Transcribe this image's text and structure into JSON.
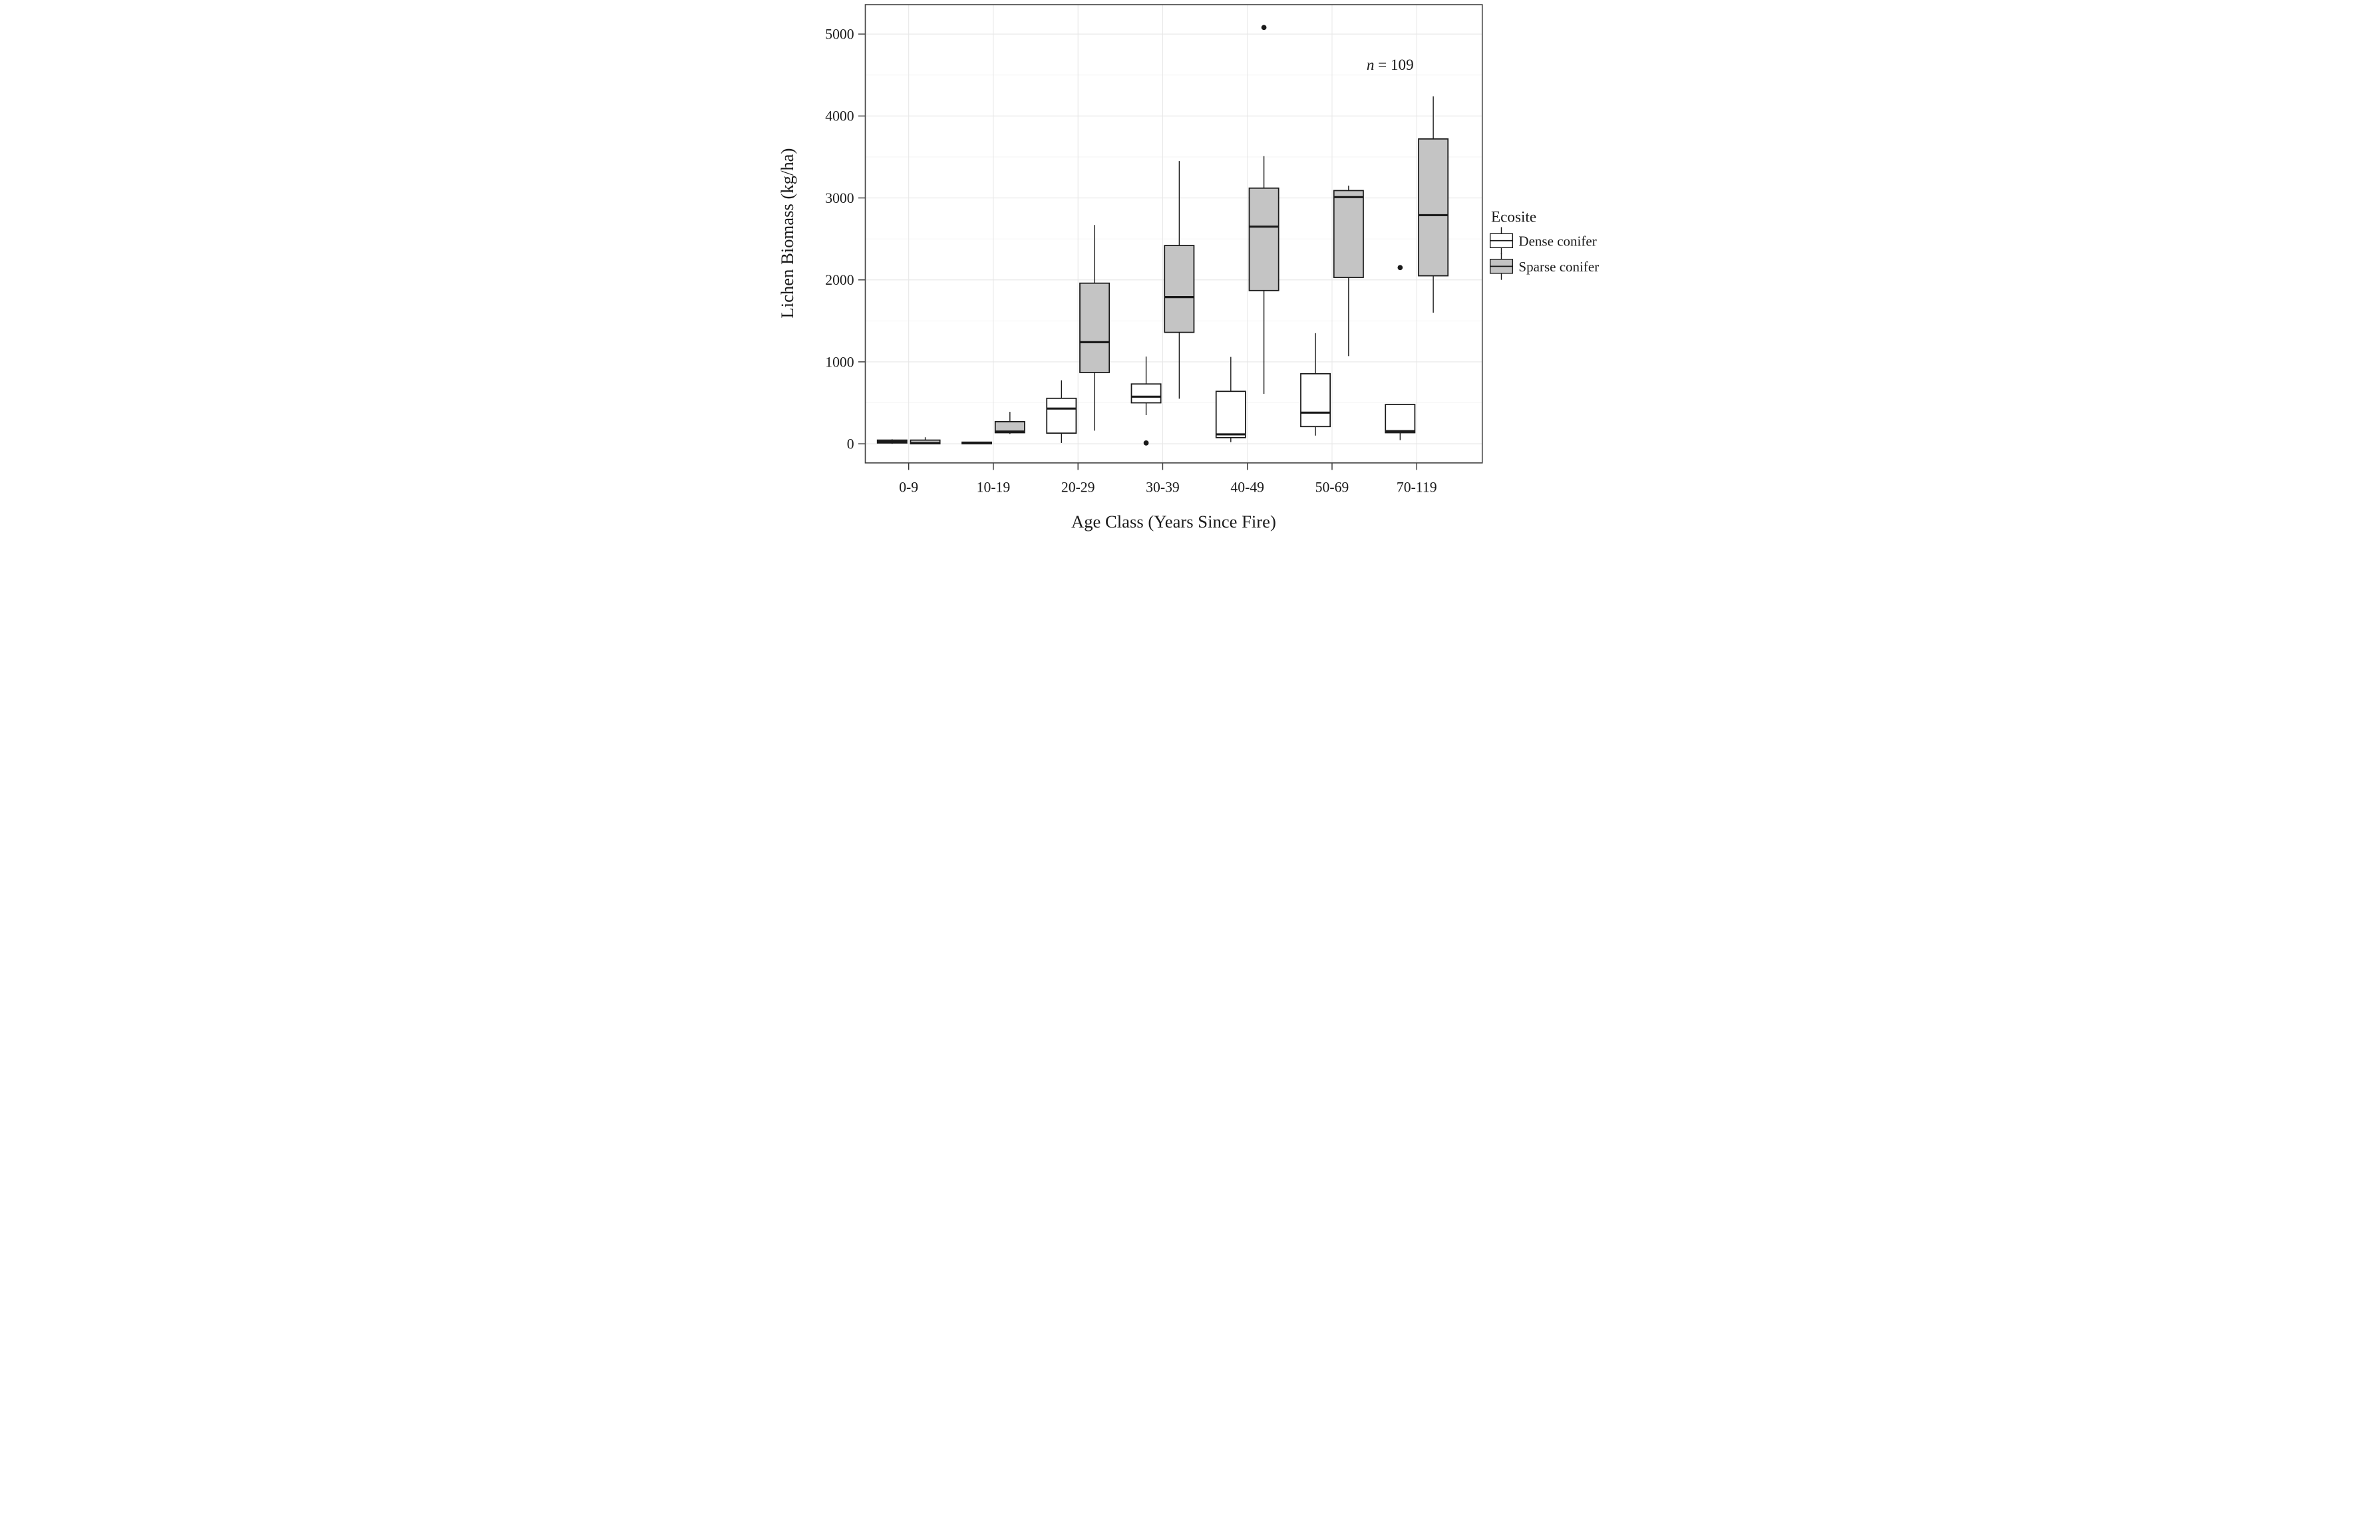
{
  "chart_data": {
    "type": "boxplot",
    "xlabel": "Age Class (Years Since Fire)",
    "ylabel": "Lichen Biomass (kg/ha)",
    "annotation": {
      "text": "n = 109",
      "var": "n",
      "rest": " = 109"
    },
    "categories": [
      "0-9",
      "10-19",
      "20-29",
      "30-39",
      "40-49",
      "50-69",
      "70-119"
    ],
    "ylim": [
      0,
      5000
    ],
    "yticks": [
      0,
      1000,
      2000,
      3000,
      4000,
      5000
    ],
    "yticks_minor": [
      500,
      1500,
      2500,
      3500,
      4500
    ],
    "grid": "major+minor horizontal, major vertical at category centers",
    "legend": {
      "title": "Ecosite",
      "position": "right"
    },
    "colors": {
      "box_stroke": "#1a1a1a",
      "panel_border": "#3f3f3f",
      "grid_major": "#e7e7e7",
      "grid_minor": "#f3f3f3",
      "tick": "#333333",
      "outlier": "#1a1a1a"
    },
    "series": [
      {
        "name": "Dense conifer",
        "color": "#ffffff",
        "boxes": [
          {
            "category": "0-9",
            "min": 0,
            "q1": 10,
            "median": 25,
            "q3": 45,
            "max": 55,
            "outliers": []
          },
          {
            "category": "10-19",
            "min": 0,
            "q1": 0,
            "median": 8,
            "q3": 20,
            "max": 25,
            "outliers": []
          },
          {
            "category": "20-29",
            "min": 10,
            "q1": 130,
            "median": 430,
            "q3": 555,
            "max": 775,
            "outliers": []
          },
          {
            "category": "30-39",
            "min": 350,
            "q1": 500,
            "median": 575,
            "q3": 730,
            "max": 1065,
            "outliers": [
              10
            ]
          },
          {
            "category": "40-49",
            "min": 20,
            "q1": 75,
            "median": 115,
            "q3": 640,
            "max": 1060,
            "outliers": []
          },
          {
            "category": "50-69",
            "min": 100,
            "q1": 210,
            "median": 380,
            "q3": 855,
            "max": 1350,
            "outliers": []
          },
          {
            "category": "70-119",
            "min": 45,
            "q1": 135,
            "median": 155,
            "q3": 480,
            "max": 480,
            "outliers": [
              2150
            ]
          }
        ]
      },
      {
        "name": "Sparse conifer",
        "color": "#c4c4c4",
        "boxes": [
          {
            "category": "0-9",
            "min": 0,
            "q1": 0,
            "median": 10,
            "q3": 45,
            "max": 80,
            "outliers": []
          },
          {
            "category": "10-19",
            "min": 120,
            "q1": 135,
            "median": 150,
            "q3": 270,
            "max": 390,
            "outliers": []
          },
          {
            "category": "20-29",
            "min": 160,
            "q1": 870,
            "median": 1240,
            "q3": 1960,
            "max": 2670,
            "outliers": []
          },
          {
            "category": "30-39",
            "min": 550,
            "q1": 1360,
            "median": 1790,
            "q3": 2420,
            "max": 3450,
            "outliers": []
          },
          {
            "category": "40-49",
            "min": 610,
            "q1": 1870,
            "median": 2650,
            "q3": 3120,
            "max": 3510,
            "outliers": [
              5080
            ]
          },
          {
            "category": "50-69",
            "min": 1070,
            "q1": 2030,
            "median": 3010,
            "q3": 3090,
            "max": 3150,
            "outliers": []
          },
          {
            "category": "70-119",
            "min": 1600,
            "q1": 2050,
            "median": 2790,
            "q3": 3720,
            "max": 4240,
            "outliers": []
          }
        ]
      }
    ]
  }
}
